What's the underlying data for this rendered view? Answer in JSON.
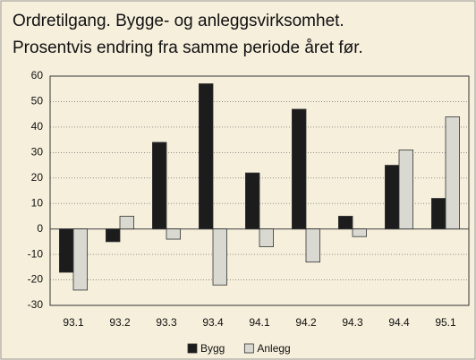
{
  "chart_data": {
    "type": "bar",
    "title": "Ordretilgang. Bygge- og anleggsvirksomhet.",
    "subtitle": "Prosentvis endring fra samme periode året før.",
    "categories": [
      "93.1",
      "93.2",
      "93.3",
      "93.4",
      "94.1",
      "94.2",
      "94.3",
      "94.4",
      "95.1"
    ],
    "series": [
      {
        "name": "Bygg",
        "color": "#1c1c1c",
        "values": [
          -17,
          -5,
          34,
          57,
          22,
          47,
          5,
          25,
          12
        ]
      },
      {
        "name": "Anlegg",
        "color": "#d9d9d2",
        "values": [
          -24,
          5,
          -4,
          -22,
          -7,
          -13,
          -3,
          31,
          44
        ]
      }
    ],
    "ylim": [
      -30,
      60
    ],
    "yticks": [
      -30,
      -20,
      -10,
      0,
      10,
      20,
      30,
      40,
      50,
      60
    ],
    "grid": true,
    "legend": "bottom"
  }
}
